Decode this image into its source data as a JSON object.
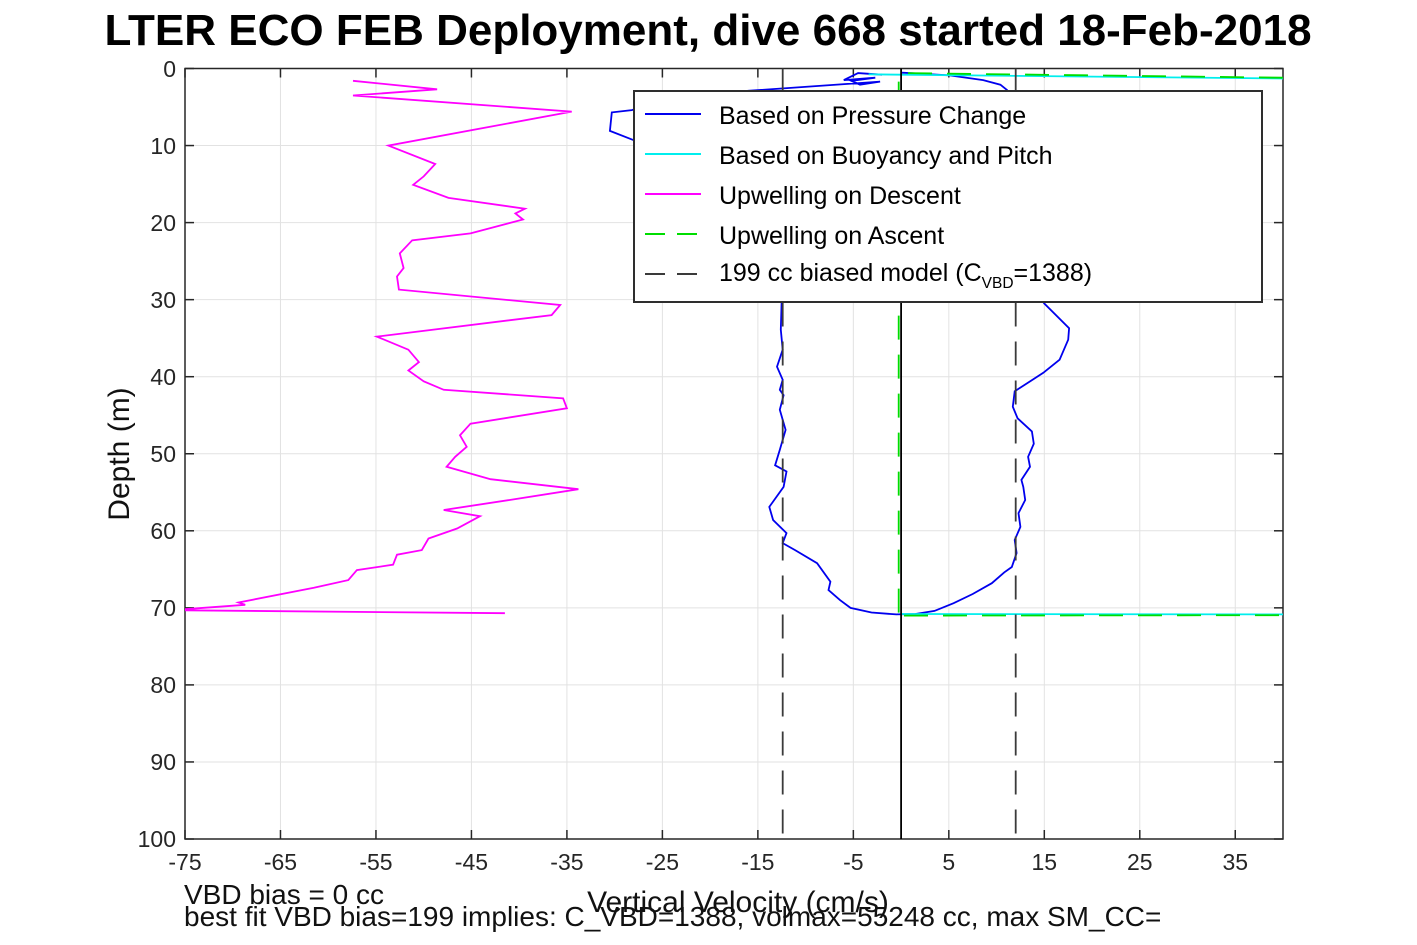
{
  "title": "LTER ECO FEB Deployment, dive 668 started 18-Feb-2018",
  "annotations": {
    "vbd_bias": "VBD bias = 0 cc",
    "best_fit": "best fit VBD bias=199 implies: C_VBD=1388, volmax=55248 cc, max SM_CC="
  },
  "colors": {
    "pressure_blue": "#0000ee",
    "buoyancy_cyan": "#00eeee",
    "descent_magenta": "#ff00ff",
    "ascent_green": "#00dd00",
    "model_black": "#3a3a3a",
    "zero_line": "#000000",
    "grid": "#e2e2e2",
    "axis": "#262626",
    "tick_text": "#262626"
  },
  "chart_data": {
    "type": "line",
    "title": "LTER ECO FEB Deployment, dive 668 started 18-Feb-2018",
    "xlabel": "Vertical Velocity (cm/s)",
    "ylabel": "Depth (m)",
    "xlim": [
      -75,
      40
    ],
    "ylim": [
      0,
      100
    ],
    "y_inverted": true,
    "grid": true,
    "x_ticks": [
      -75,
      -65,
      -55,
      -45,
      -35,
      -25,
      -15,
      -5,
      5,
      15,
      25,
      35
    ],
    "y_ticks": [
      0,
      10,
      20,
      30,
      40,
      50,
      60,
      70,
      80,
      90,
      100
    ],
    "legend_position": "upper center-right inside",
    "series": [
      {
        "name": "Based on Pressure Change",
        "color": "#0000ee",
        "style": "solid",
        "in_legend": true,
        "segments": [
          [
            [
              -2.0,
              0.8
            ],
            [
              -4.5,
              0.6
            ],
            [
              -6.0,
              1.5
            ],
            [
              -2.7,
              1.2
            ],
            [
              -5.2,
              1.6
            ],
            [
              -4.3,
              2.1
            ],
            [
              -2.2,
              1.7
            ],
            [
              -16,
              2.9
            ],
            [
              -25,
              4.2
            ],
            [
              -28.2,
              5.4
            ],
            [
              -30.3,
              5.7
            ],
            [
              -30.5,
              8.1
            ],
            [
              -28,
              9.3
            ],
            [
              -21,
              11.5
            ],
            [
              -14.5,
              15
            ],
            [
              -12.8,
              20
            ],
            [
              -12.6,
              25
            ],
            [
              -12.5,
              30
            ],
            [
              -12.6,
              33.9
            ],
            [
              -12.4,
              36.5
            ],
            [
              -13.0,
              38.7
            ],
            [
              -12.4,
              40.4
            ],
            [
              -12.7,
              41.7
            ],
            [
              -12.3,
              42.4
            ],
            [
              -12.7,
              44.3
            ],
            [
              -12.1,
              46.9
            ],
            [
              -12.7,
              49.5
            ],
            [
              -13.2,
              51.5
            ],
            [
              -12.0,
              52.3
            ],
            [
              -12.3,
              54.3
            ],
            [
              -13.8,
              56.9
            ],
            [
              -13.4,
              58.6
            ],
            [
              -12.0,
              60.3
            ],
            [
              -12.4,
              61.6
            ],
            [
              -11.1,
              62.5
            ],
            [
              -8.8,
              64.2
            ],
            [
              -7.4,
              66.6
            ],
            [
              -7.6,
              67.7
            ],
            [
              -6.4,
              69.0
            ],
            [
              -5.3,
              70.0
            ],
            [
              -3.1,
              70.6
            ],
            [
              -0.5,
              70.85
            ],
            [
              1.5,
              70.8
            ],
            [
              3.5,
              70.4
            ],
            [
              5.5,
              69.4
            ],
            [
              7.5,
              68.2
            ],
            [
              9.5,
              66.8
            ],
            [
              10.8,
              65.4
            ],
            [
              11.6,
              64.7
            ],
            [
              12.1,
              62.9
            ],
            [
              11.9,
              61.2
            ],
            [
              12.5,
              59.5
            ],
            [
              12.3,
              57.7
            ],
            [
              13.0,
              56.0
            ],
            [
              12.8,
              54.3
            ],
            [
              12.6,
              53.4
            ],
            [
              13.5,
              51.7
            ],
            [
              13.3,
              50.4
            ],
            [
              13.9,
              48.7
            ],
            [
              13.7,
              47.1
            ],
            [
              12.2,
              45.4
            ],
            [
              11.7,
              43.9
            ],
            [
              11.9,
              41.9
            ],
            [
              14.9,
              39.5
            ],
            [
              16.6,
              37.8
            ],
            [
              17.5,
              35.2
            ],
            [
              17.6,
              33.7
            ],
            [
              15.0,
              30.5
            ],
            [
              13.5,
              28
            ],
            [
              12.5,
              20
            ],
            [
              12.0,
              12
            ],
            [
              11.5,
              6
            ],
            [
              11.1,
              2.8
            ],
            [
              10.4,
              2.1
            ],
            [
              8.6,
              1.5
            ],
            [
              5.1,
              0.9
            ],
            [
              0.1,
              0.55
            ]
          ]
        ]
      },
      {
        "name": "Based on Buoyancy and Pitch",
        "color": "#00eeee",
        "style": "solid",
        "in_legend": true,
        "segments": [
          [
            [
              -3.4,
              0.75
            ],
            [
              0,
              0.8
            ],
            [
              40,
              1.3
            ]
          ],
          [
            [
              0,
              70.8
            ],
            [
              40,
              70.85
            ]
          ]
        ]
      },
      {
        "name": "Upwelling on Descent",
        "color": "#ff00ff",
        "style": "solid",
        "in_legend": true,
        "segments": [
          [
            [
              -57.4,
              1.6
            ],
            [
              -48.6,
              2.7
            ],
            [
              -57.4,
              3.5
            ],
            [
              -34.5,
              5.6
            ],
            [
              -53.7,
              10.0
            ],
            [
              -48.8,
              12.4
            ],
            [
              -50.0,
              14.0
            ],
            [
              -51.1,
              15.1
            ],
            [
              -47.4,
              16.8
            ],
            [
              -39.4,
              18.2
            ],
            [
              -40.4,
              18.8
            ],
            [
              -39.6,
              19.6
            ],
            [
              -45.1,
              21.4
            ],
            [
              -51.2,
              22.3
            ],
            [
              -52.5,
              24.0
            ],
            [
              -52.1,
              25.9
            ],
            [
              -52.8,
              27.0
            ],
            [
              -52.6,
              28.7
            ],
            [
              -35.7,
              30.7
            ],
            [
              -36.6,
              32.0
            ],
            [
              -54.9,
              34.8
            ],
            [
              -51.6,
              36.5
            ],
            [
              -50.5,
              38.1
            ],
            [
              -51.6,
              39.2
            ],
            [
              -50.0,
              40.6
            ],
            [
              -47.9,
              41.7
            ],
            [
              -35.4,
              42.8
            ],
            [
              -35.0,
              44.1
            ],
            [
              -45.1,
              46.1
            ],
            [
              -46.2,
              47.6
            ],
            [
              -45.5,
              49.1
            ],
            [
              -46.7,
              50.4
            ],
            [
              -47.6,
              51.7
            ],
            [
              -43.0,
              53.3
            ],
            [
              -33.8,
              54.6
            ],
            [
              -41.0,
              56.0
            ],
            [
              -47.9,
              57.3
            ],
            [
              -44.1,
              58.1
            ],
            [
              -46.5,
              59.7
            ],
            [
              -49.5,
              61.0
            ],
            [
              -50.2,
              62.5
            ],
            [
              -52.8,
              63.1
            ],
            [
              -53.2,
              64.4
            ],
            [
              -57.0,
              65.1
            ],
            [
              -57.9,
              66.4
            ],
            [
              -61.5,
              67.4
            ],
            [
              -69.4,
              69.3
            ],
            [
              -68.7,
              69.6
            ],
            [
              -76.5,
              70.3
            ],
            [
              -41.5,
              70.7
            ]
          ]
        ]
      },
      {
        "name": "Upwelling on Ascent",
        "color": "#00dd00",
        "style": "dashed",
        "in_legend": true,
        "segments": [
          [
            [
              40,
              1.2
            ],
            [
              0.3,
              0.6
            ],
            [
              -0.25,
              1.2
            ],
            [
              -0.25,
              70.9
            ]
          ],
          [
            [
              0.3,
              71.0
            ],
            [
              40,
              70.95
            ]
          ]
        ]
      },
      {
        "name": "199 cc biased model (C_VBD=1388)",
        "color": "#3a3a3a",
        "style": "dashed",
        "in_legend": true,
        "segments": [
          [
            [
              -12.4,
              0
            ],
            [
              -12.4,
              100
            ]
          ],
          [
            [
              12.0,
              0
            ],
            [
              12.0,
              100
            ]
          ]
        ]
      },
      {
        "name": "zero reference line",
        "color": "#000000",
        "style": "solid",
        "in_legend": false,
        "segments": [
          [
            [
              0,
              0
            ],
            [
              0,
              100
            ]
          ]
        ]
      }
    ],
    "legend_entries": [
      {
        "series": 0,
        "parts": [
          {
            "text": "Based on Pressure Change"
          }
        ]
      },
      {
        "series": 1,
        "parts": [
          {
            "text": "Based on Buoyancy and Pitch"
          }
        ]
      },
      {
        "series": 2,
        "parts": [
          {
            "text": "Upwelling on Descent"
          }
        ]
      },
      {
        "series": 3,
        "parts": [
          {
            "text": "Upwelling on Ascent"
          }
        ]
      },
      {
        "series": 4,
        "parts": [
          {
            "text": "199 cc biased model (C"
          },
          {
            "text": "VBD",
            "sub": true
          },
          {
            "text": "=1388)"
          }
        ]
      }
    ]
  }
}
